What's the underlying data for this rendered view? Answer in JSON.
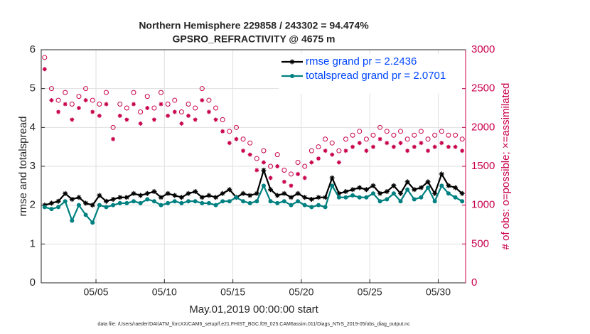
{
  "chart_data": {
    "type": "line",
    "title": "Northern Hemisphere 229858 / 243302 = 94.474%",
    "subtitle": "GPSRO_REFRACTIVITY @ 4675 m",
    "xlabel": "May.01,2019 00:00:00 start",
    "ylabel": "rmse and totalspread",
    "y2label": "# of obs: o=possible; ×=assimilated",
    "footnote": "data file: /Users/raeder/DAI/ATM_forcXX/CAM6_setup/f.e21.FHIST_BGC.f09_025.CAM6assim.011/Diags_NTrS_2019-05/obs_diag_output.nc",
    "x": [
      1.25,
      1.75,
      2.25,
      2.75,
      3.25,
      3.75,
      4.25,
      4.75,
      5.25,
      5.75,
      6.25,
      6.75,
      7.25,
      7.75,
      8.25,
      8.75,
      9.25,
      9.75,
      10.25,
      10.75,
      11.25,
      11.75,
      12.25,
      12.75,
      13.25,
      13.75,
      14.25,
      14.75,
      15.25,
      15.75,
      16.25,
      16.75,
      17.25,
      17.75,
      18.25,
      18.75,
      19.25,
      19.75,
      20.25,
      20.75,
      21.25,
      21.75,
      22.25,
      22.75,
      23.25,
      23.75,
      24.25,
      24.75,
      25.25,
      25.75,
      26.25,
      26.75,
      27.25,
      27.75,
      28.25,
      28.75,
      29.25,
      29.75,
      30.25,
      30.75,
      31.25,
      31.75
    ],
    "xlim": [
      1,
      32
    ],
    "xticks": [
      {
        "value": 5,
        "label": "05/05"
      },
      {
        "value": 10,
        "label": "05/10"
      },
      {
        "value": 15,
        "label": "05/15"
      },
      {
        "value": 20,
        "label": "05/20"
      },
      {
        "value": 25,
        "label": "05/25"
      },
      {
        "value": 30,
        "label": "05/30"
      }
    ],
    "ylim": [
      0,
      6
    ],
    "yticks": [
      0,
      1,
      2,
      3,
      4,
      5,
      6
    ],
    "y2lim": [
      0,
      3000
    ],
    "y2ticks": [
      0,
      500,
      1000,
      1500,
      2000,
      2500,
      3000
    ],
    "grid": true,
    "legend": "top-right",
    "series": [
      {
        "name": "rmse grand pr = 2.2436",
        "color": "#000000",
        "marker": "*",
        "values": [
          2.0,
          2.05,
          2.1,
          2.3,
          2.15,
          2.2,
          2.05,
          2.0,
          2.25,
          2.1,
          2.15,
          2.2,
          2.2,
          2.3,
          2.25,
          2.3,
          2.35,
          2.2,
          2.3,
          2.25,
          2.2,
          2.3,
          2.35,
          2.2,
          2.25,
          2.2,
          2.3,
          2.4,
          2.2,
          2.3,
          2.25,
          2.3,
          2.9,
          2.4,
          2.25,
          2.3,
          2.2,
          2.3,
          2.2,
          2.15,
          2.2,
          2.2,
          2.7,
          2.3,
          2.35,
          2.4,
          2.45,
          2.4,
          2.5,
          2.3,
          2.35,
          2.5,
          2.3,
          2.6,
          2.4,
          2.45,
          2.6,
          2.3,
          2.8,
          2.5,
          2.45,
          2.3
        ]
      },
      {
        "name": "totalspread grand pr = 2.0701",
        "color": "#008080",
        "marker": "o",
        "values": [
          1.95,
          1.9,
          1.95,
          2.1,
          1.6,
          2.0,
          1.75,
          1.55,
          2.0,
          1.95,
          2.0,
          2.05,
          2.05,
          2.1,
          2.05,
          2.15,
          2.1,
          2.0,
          2.05,
          2.1,
          2.05,
          2.1,
          2.1,
          2.05,
          2.05,
          2.0,
          2.1,
          2.1,
          2.2,
          2.1,
          2.05,
          2.1,
          2.5,
          2.1,
          2.05,
          2.1,
          2.0,
          2.1,
          2.0,
          1.95,
          2.0,
          1.95,
          2.5,
          2.2,
          2.2,
          2.25,
          2.2,
          2.2,
          2.3,
          2.1,
          2.15,
          2.3,
          2.1,
          2.4,
          2.15,
          2.2,
          2.45,
          2.1,
          2.5,
          2.3,
          2.2,
          2.1
        ]
      },
      {
        "type": "scatter",
        "axis": "y2",
        "color": "#c8004b",
        "marker": "o",
        "values": [
          2900,
          2500,
          2350,
          2450,
          2300,
          2400,
          2500,
          2350,
          2300,
          2450,
          2000,
          2300,
          2250,
          2450,
          2200,
          2400,
          2250,
          2450,
          2300,
          2350,
          2200,
          2300,
          2250,
          2500,
          2350,
          2250,
          2100,
          1950,
          2000,
          1850,
          1800,
          1600,
          1700,
          1500,
          1650,
          1450,
          1400,
          1550,
          1500,
          1700,
          1750,
          1850,
          1800,
          1700,
          1850,
          1900,
          1950,
          1850,
          1900,
          2000,
          1950,
          1900,
          1950,
          1850,
          1900,
          1950,
          1850,
          1900,
          1950,
          1900,
          1900,
          1850
        ]
      },
      {
        "type": "scatter",
        "axis": "y2",
        "color": "#c8004b",
        "marker": "*",
        "values": [
          2750,
          2350,
          2200,
          2300,
          2100,
          2250,
          2350,
          2200,
          2150,
          2300,
          1850,
          2150,
          2100,
          2300,
          2050,
          2250,
          2100,
          2300,
          2150,
          2200,
          2050,
          2150,
          2100,
          2350,
          2200,
          2100,
          1950,
          1800,
          1850,
          1700,
          1650,
          1450,
          1550,
          1350,
          1500,
          1300,
          1250,
          1400,
          1350,
          1550,
          1600,
          1700,
          1650,
          1550,
          1700,
          1750,
          1800,
          1700,
          1750,
          1850,
          1800,
          1750,
          1800,
          1700,
          1750,
          1800,
          1700,
          1750,
          1800,
          1750,
          1750,
          1700
        ]
      }
    ]
  }
}
